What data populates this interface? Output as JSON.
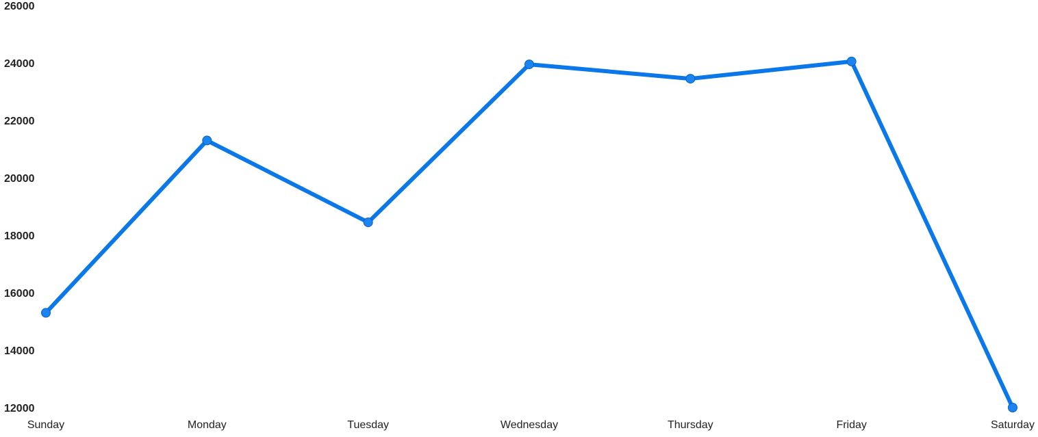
{
  "chart_data": {
    "type": "line",
    "categories": [
      "Sunday",
      "Monday",
      "Tuesday",
      "Wednesday",
      "Thursday",
      "Friday",
      "Saturday"
    ],
    "series": [
      {
        "values": [
          15300,
          21300,
          18450,
          23950,
          23450,
          24050,
          12000
        ]
      }
    ],
    "yticks": [
      "12000",
      "14000",
      "16000",
      "18000",
      "20000",
      "22000",
      "24000",
      "26000"
    ],
    "ylim": [
      12000,
      26000
    ],
    "grid": false,
    "legend": "none",
    "title": "",
    "xlabel": "",
    "ylabel": "",
    "colors": {
      "line": "#0a78e8",
      "marker": "#1a84f0",
      "marker_stroke": "#0a5fc0",
      "text": "#222222"
    }
  }
}
